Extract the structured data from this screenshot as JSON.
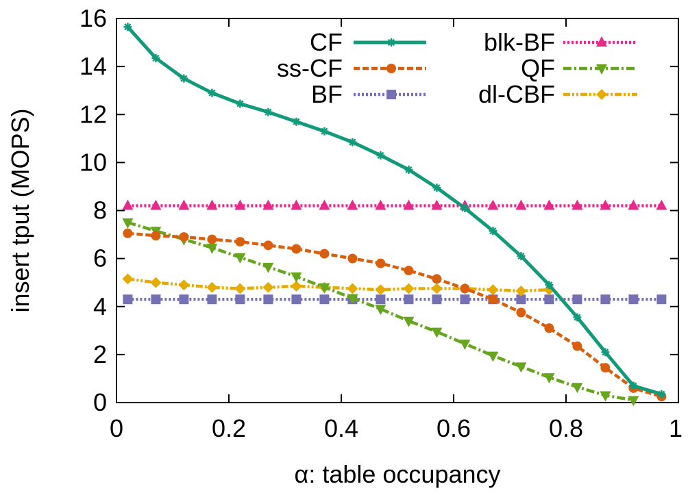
{
  "chart_data": {
    "type": "line",
    "title": "",
    "xlabel": "α: table occupancy",
    "ylabel": "insert tput (MOPS)",
    "xlim": [
      0,
      1
    ],
    "ylim": [
      0,
      16
    ],
    "xticks": [
      0,
      0.2,
      0.4,
      0.6,
      0.8,
      1
    ],
    "xtick_labels": [
      "0",
      "0.2",
      "0.4",
      "0.6",
      "0.8",
      "1"
    ],
    "yticks": [
      0,
      2,
      4,
      6,
      8,
      10,
      12,
      14,
      16
    ],
    "ytick_labels": [
      "0",
      "2",
      "4",
      "6",
      "8",
      "10",
      "12",
      "14",
      "16"
    ],
    "legend_position": "top-right",
    "series": [
      {
        "name": "CF",
        "color": "#119b7a",
        "dash": "solid",
        "marker": "star",
        "x": [
          0.02,
          0.07,
          0.12,
          0.17,
          0.22,
          0.27,
          0.32,
          0.37,
          0.42,
          0.47,
          0.52,
          0.57,
          0.62,
          0.67,
          0.72,
          0.77,
          0.82,
          0.87,
          0.92,
          0.97
        ],
        "y": [
          15.65,
          14.35,
          13.5,
          12.9,
          12.45,
          12.1,
          11.7,
          11.3,
          10.85,
          10.3,
          9.7,
          8.95,
          8.1,
          7.15,
          6.1,
          4.9,
          3.55,
          2.1,
          0.7,
          0.35
        ]
      },
      {
        "name": "ss-CF",
        "color": "#d95f0e",
        "dash": "dashed",
        "marker": "circle",
        "x": [
          0.02,
          0.07,
          0.12,
          0.17,
          0.22,
          0.27,
          0.32,
          0.37,
          0.42,
          0.47,
          0.52,
          0.57,
          0.62,
          0.67,
          0.72,
          0.77,
          0.82,
          0.87,
          0.92,
          0.97
        ],
        "y": [
          7.05,
          6.95,
          6.9,
          6.8,
          6.7,
          6.55,
          6.4,
          6.2,
          6.0,
          5.8,
          5.5,
          5.15,
          4.75,
          4.3,
          3.75,
          3.1,
          2.35,
          1.45,
          0.6,
          0.25
        ]
      },
      {
        "name": "BF",
        "color": "#7570b3",
        "dash": "dotted",
        "marker": "square",
        "x": [
          0.02,
          0.07,
          0.12,
          0.17,
          0.22,
          0.27,
          0.32,
          0.37,
          0.42,
          0.47,
          0.52,
          0.57,
          0.62,
          0.67,
          0.72,
          0.77,
          0.82,
          0.87,
          0.92,
          0.97
        ],
        "y": [
          4.3,
          4.3,
          4.3,
          4.3,
          4.3,
          4.3,
          4.3,
          4.3,
          4.3,
          4.3,
          4.3,
          4.3,
          4.3,
          4.3,
          4.3,
          4.3,
          4.3,
          4.3,
          4.3,
          4.3
        ]
      },
      {
        "name": "blk-BF",
        "color": "#e7298a",
        "dash": "dotted",
        "marker": "triangle-up",
        "x": [
          0.02,
          0.07,
          0.12,
          0.17,
          0.22,
          0.27,
          0.32,
          0.37,
          0.42,
          0.47,
          0.52,
          0.57,
          0.62,
          0.67,
          0.72,
          0.77,
          0.82,
          0.87,
          0.92,
          0.97
        ],
        "y": [
          8.2,
          8.2,
          8.2,
          8.2,
          8.2,
          8.2,
          8.2,
          8.2,
          8.2,
          8.2,
          8.2,
          8.2,
          8.2,
          8.2,
          8.2,
          8.2,
          8.2,
          8.2,
          8.2,
          8.2
        ]
      },
      {
        "name": "QF",
        "color": "#66a61e",
        "dash": "dash-dot",
        "marker": "triangle-down",
        "x": [
          0.02,
          0.07,
          0.12,
          0.17,
          0.22,
          0.27,
          0.32,
          0.37,
          0.42,
          0.47,
          0.52,
          0.57,
          0.62,
          0.67,
          0.72,
          0.77,
          0.82,
          0.87,
          0.92
        ],
        "y": [
          7.5,
          7.15,
          6.8,
          6.45,
          6.05,
          5.65,
          5.25,
          4.8,
          4.35,
          3.9,
          3.4,
          2.95,
          2.45,
          1.95,
          1.5,
          1.05,
          0.65,
          0.3,
          0.1
        ]
      },
      {
        "name": "dl-CBF",
        "color": "#e6ab02",
        "dash": "dash-dot-dot",
        "marker": "diamond",
        "x": [
          0.02,
          0.07,
          0.12,
          0.17,
          0.22,
          0.27,
          0.32,
          0.37,
          0.42,
          0.47,
          0.52,
          0.57,
          0.62,
          0.67,
          0.72,
          0.77
        ],
        "y": [
          5.15,
          5.0,
          4.9,
          4.8,
          4.75,
          4.8,
          4.85,
          4.8,
          4.75,
          4.7,
          4.75,
          4.75,
          4.75,
          4.7,
          4.65,
          4.7
        ]
      }
    ]
  }
}
